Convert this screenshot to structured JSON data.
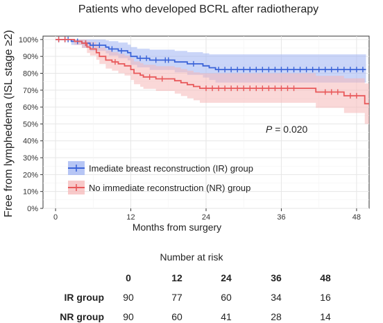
{
  "chart_data": {
    "type": "line",
    "title": "Patients who developed BCRL after radiotherapy",
    "xlabel": "Months from surgery",
    "ylabel": "Free from lymphedema (ISL stage ≥2)",
    "xlim": [
      -2,
      50
    ],
    "ylim": [
      0,
      1.02
    ],
    "x_ticks": [
      0,
      12,
      24,
      36,
      48
    ],
    "y_ticks": [
      "0%",
      "10%",
      "20%",
      "30%",
      "40%",
      "50%",
      "60%",
      "70%",
      "80%",
      "90%",
      "100%"
    ],
    "grid": true,
    "legend_position": "bottom-left",
    "annotation": {
      "prefix": "P",
      "text": " = 0.020"
    },
    "series": [
      {
        "name": "Imediate breast reconstruction (IR) group",
        "color": "#3A63D8",
        "band_color": "#9FB3F2",
        "steps": [
          [
            0,
            1.0
          ],
          [
            2.5,
            0.989
          ],
          [
            4.2,
            0.978
          ],
          [
            5.5,
            0.966
          ],
          [
            8,
            0.955
          ],
          [
            8.5,
            0.944
          ],
          [
            10,
            0.933
          ],
          [
            11.5,
            0.922
          ],
          [
            12,
            0.9
          ],
          [
            13,
            0.889
          ],
          [
            15,
            0.878
          ],
          [
            19,
            0.867
          ],
          [
            21,
            0.856
          ],
          [
            23.5,
            0.844
          ],
          [
            24.5,
            0.833
          ],
          [
            25.5,
            0.822
          ],
          [
            49.5,
            0.822
          ]
        ],
        "lower": [
          [
            0,
            1.0
          ],
          [
            2.5,
            0.968
          ],
          [
            4.2,
            0.95
          ],
          [
            5.5,
            0.932
          ],
          [
            8,
            0.918
          ],
          [
            8.5,
            0.905
          ],
          [
            10,
            0.89
          ],
          [
            11.5,
            0.876
          ],
          [
            12,
            0.85
          ],
          [
            13,
            0.835
          ],
          [
            15,
            0.82
          ],
          [
            19,
            0.805
          ],
          [
            21,
            0.79
          ],
          [
            23.5,
            0.775
          ],
          [
            24.5,
            0.76
          ],
          [
            25.5,
            0.745
          ],
          [
            49.5,
            0.745
          ]
        ],
        "upper": [
          [
            0,
            1.0
          ],
          [
            2.5,
            1.0
          ],
          [
            4.2,
            1.0
          ],
          [
            5.5,
            1.0
          ],
          [
            8,
            0.995
          ],
          [
            8.5,
            0.99
          ],
          [
            10,
            0.982
          ],
          [
            11.5,
            0.97
          ],
          [
            12,
            0.955
          ],
          [
            13,
            0.945
          ],
          [
            15,
            0.94
          ],
          [
            19,
            0.933
          ],
          [
            21,
            0.925
          ],
          [
            23.5,
            0.918
          ],
          [
            24.5,
            0.912
          ],
          [
            25.5,
            0.912
          ],
          [
            49.5,
            0.912
          ]
        ],
        "censor_x": [
          0.5,
          1.5,
          2,
          3.5,
          4.8,
          6,
          7,
          9,
          10.5,
          13.5,
          14.5,
          16,
          17.5,
          18,
          22,
          26,
          27,
          28,
          29,
          30,
          31,
          32,
          33,
          34,
          35,
          36,
          37,
          38,
          39,
          40,
          41,
          42,
          43,
          44,
          45,
          46,
          47,
          48,
          49
        ]
      },
      {
        "name": "No immediate reconstruction (NR) group",
        "color": "#E8585A",
        "band_color": "#F6B8B8",
        "steps": [
          [
            0,
            1.0
          ],
          [
            3,
            0.989
          ],
          [
            4.2,
            0.978
          ],
          [
            5,
            0.956
          ],
          [
            5.5,
            0.944
          ],
          [
            6.5,
            0.922
          ],
          [
            7,
            0.9
          ],
          [
            8,
            0.878
          ],
          [
            9,
            0.867
          ],
          [
            10,
            0.856
          ],
          [
            11,
            0.844
          ],
          [
            12,
            0.822
          ],
          [
            12.5,
            0.8
          ],
          [
            13.5,
            0.789
          ],
          [
            14,
            0.778
          ],
          [
            16,
            0.767
          ],
          [
            19,
            0.756
          ],
          [
            20,
            0.744
          ],
          [
            21,
            0.733
          ],
          [
            22,
            0.722
          ],
          [
            23,
            0.711
          ],
          [
            41.5,
            0.689
          ],
          [
            46,
            0.667
          ],
          [
            49.3,
            0.62
          ],
          [
            50,
            0.62
          ]
        ],
        "lower": [
          [
            0,
            1.0
          ],
          [
            3,
            0.968
          ],
          [
            4.2,
            0.95
          ],
          [
            5,
            0.92
          ],
          [
            5.5,
            0.905
          ],
          [
            6.5,
            0.88
          ],
          [
            7,
            0.855
          ],
          [
            8,
            0.828
          ],
          [
            9,
            0.815
          ],
          [
            10,
            0.8
          ],
          [
            11,
            0.787
          ],
          [
            12,
            0.76
          ],
          [
            12.5,
            0.735
          ],
          [
            13.5,
            0.72
          ],
          [
            14,
            0.708
          ],
          [
            16,
            0.695
          ],
          [
            19,
            0.68
          ],
          [
            20,
            0.665
          ],
          [
            21,
            0.652
          ],
          [
            22,
            0.64
          ],
          [
            23,
            0.625
          ],
          [
            41.5,
            0.595
          ],
          [
            46,
            0.565
          ],
          [
            49.3,
            0.5
          ],
          [
            50,
            0.5
          ]
        ],
        "upper": [
          [
            0,
            1.0
          ],
          [
            3,
            1.0
          ],
          [
            4.2,
            1.0
          ],
          [
            5,
            0.99
          ],
          [
            5.5,
            0.985
          ],
          [
            6.5,
            0.97
          ],
          [
            7,
            0.952
          ],
          [
            8,
            0.935
          ],
          [
            9,
            0.925
          ],
          [
            10,
            0.915
          ],
          [
            11,
            0.905
          ],
          [
            12,
            0.888
          ],
          [
            12.5,
            0.87
          ],
          [
            13.5,
            0.86
          ],
          [
            14,
            0.85
          ],
          [
            16,
            0.842
          ],
          [
            19,
            0.835
          ],
          [
            20,
            0.825
          ],
          [
            21,
            0.815
          ],
          [
            22,
            0.805
          ],
          [
            23,
            0.8
          ],
          [
            41.5,
            0.785
          ],
          [
            46,
            0.77
          ],
          [
            49.3,
            0.74
          ],
          [
            50,
            0.74
          ]
        ],
        "censor_x": [
          0.5,
          1.5,
          4.8,
          9.5,
          15,
          17,
          24,
          25,
          26,
          27,
          28,
          29,
          30,
          31,
          32,
          33,
          34,
          35,
          36,
          37,
          38,
          43,
          44,
          45,
          47,
          48
        ]
      }
    ]
  },
  "risk_table": {
    "title": "Number at risk",
    "months": [
      "0",
      "12",
      "24",
      "36",
      "48"
    ],
    "rows": [
      {
        "label": "IR group",
        "values": [
          "90",
          "77",
          "60",
          "34",
          "16"
        ]
      },
      {
        "label": "NR group",
        "values": [
          "90",
          "60",
          "41",
          "28",
          "14"
        ]
      }
    ]
  }
}
